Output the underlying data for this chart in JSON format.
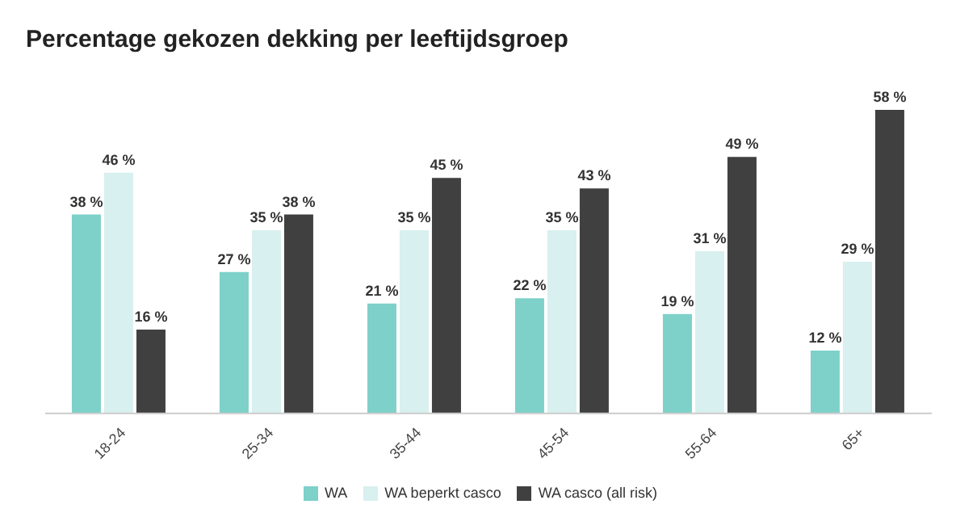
{
  "chart_data": {
    "type": "bar",
    "title": "Percentage gekozen dekking per leeftijdsgroep",
    "categories": [
      "18-24",
      "25-34",
      "35-44",
      "45-54",
      "55-64",
      "65+"
    ],
    "series": [
      {
        "name": "WA",
        "color": "#7dd1c9",
        "values": [
          38,
          27,
          21,
          22,
          19,
          12
        ],
        "value_labels": [
          "38 %",
          "27 %",
          "21 %",
          "22 %",
          "19 %",
          "12 %"
        ]
      },
      {
        "name": "WA beperkt casco",
        "color": "#d8f0ef",
        "values": [
          46,
          35,
          35,
          35,
          31,
          29
        ],
        "value_labels": [
          "46 %",
          "35 %",
          "35 %",
          "35 %",
          "31 %",
          "29 %"
        ]
      },
      {
        "name": "WA casco (all risk)",
        "color": "#404040",
        "values": [
          16,
          38,
          45,
          43,
          49,
          58
        ],
        "value_labels": [
          "16 %",
          "38 %",
          "45 %",
          "43 %",
          "49 %",
          "58 %"
        ]
      }
    ],
    "legend": "bottom"
  }
}
